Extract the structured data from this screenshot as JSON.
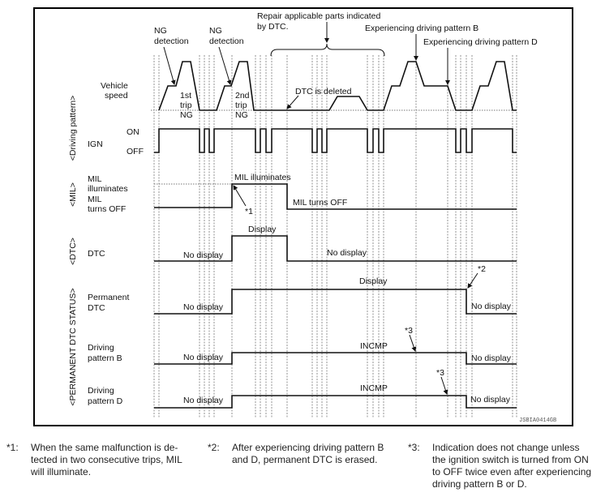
{
  "diagram": {
    "section_labels": [
      "<Driving pattern>",
      "<MIL>",
      "<DTC>",
      "<PERMANENT DTC STATUS>"
    ],
    "row_labels": {
      "vehicle_speed": [
        "Vehicle",
        "speed"
      ],
      "ign": "IGN",
      "ign_on": "ON",
      "ign_off": "OFF",
      "mil": [
        "MIL",
        "illuminates",
        "MIL",
        "turns OFF"
      ],
      "dtc": "DTC",
      "permanent_dtc": [
        "Permanent",
        "DTC"
      ],
      "pattern_b": [
        "Driving",
        "pattern B"
      ],
      "pattern_d": [
        "Driving",
        "pattern D"
      ]
    },
    "annotations": {
      "ng_detection_1": [
        "NG",
        "detection"
      ],
      "ng_detection_2": [
        "NG",
        "detection"
      ],
      "trip1": [
        "1st",
        "trip",
        "NG"
      ],
      "trip2": [
        "2nd",
        "trip",
        "NG"
      ],
      "repair": [
        "Repair applicable parts indicated",
        "by DTC."
      ],
      "pattern_b": "Experiencing driving pattern B",
      "pattern_d": "Experiencing driving pattern D",
      "dtc_deleted": "DTC is deleted",
      "mil_on": "MIL illuminates",
      "mil_off": "MIL turns OFF",
      "star1": "*1",
      "star2": "*2",
      "star3a": "*3",
      "star3b": "*3",
      "dtc_no_display_1": "No display",
      "dtc_display": "Display",
      "dtc_no_display_2": "No display",
      "perm_no_display_1": "No display",
      "perm_display": "Display",
      "perm_no_display_2": "No display",
      "b_no_display_1": "No display",
      "b_incmp": "INCMP",
      "b_no_display_2": "No display",
      "d_no_display_1": "No display",
      "d_incmp": "INCMP",
      "d_no_display_2": "No display"
    },
    "figure_id": "JSBIA0414GB"
  },
  "notes": [
    {
      "key": "*1:",
      "text": [
        "When the same malfunction is de-",
        "tected in two consecutive trips, MIL",
        "will illuminate."
      ]
    },
    {
      "key": "*2:",
      "text": [
        "After experiencing driving pattern B",
        "and D, permanent DTC is erased."
      ]
    },
    {
      "key": "*3:",
      "text": [
        "Indication does not change unless",
        "the ignition switch is turned from ON",
        "to OFF twice even after experiencing",
        "driving pattern B or D."
      ]
    }
  ]
}
